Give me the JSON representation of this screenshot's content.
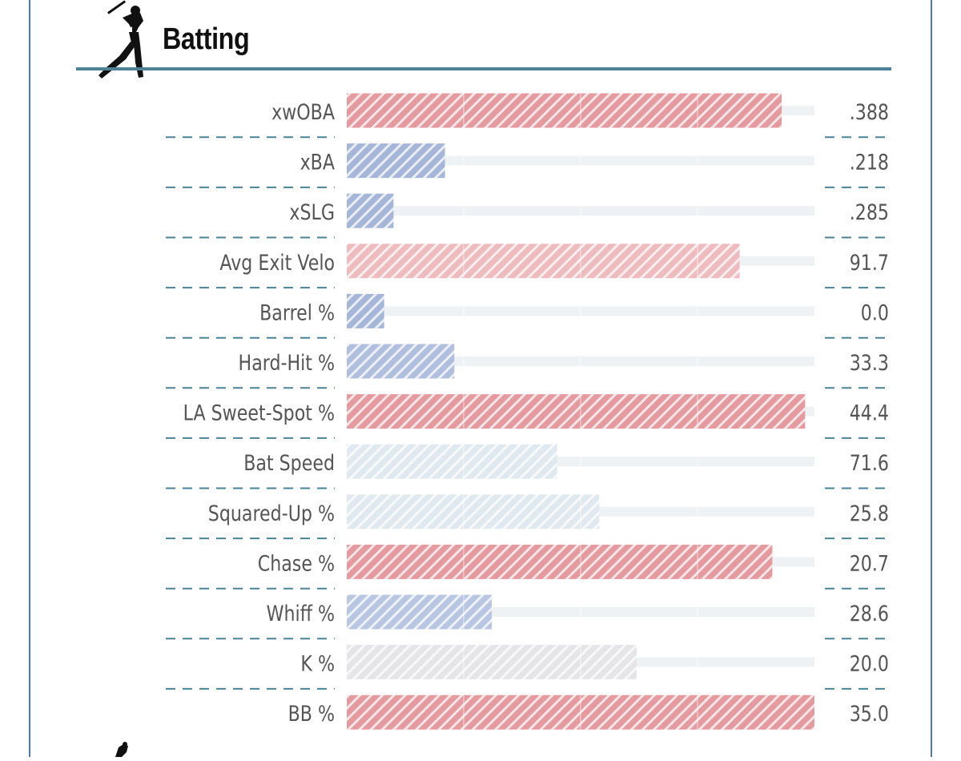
{
  "section": {
    "title": "Batting",
    "icon": "baseball-batter-icon"
  },
  "colors": {
    "frame": "#4f8296",
    "rule": "#4f8296",
    "divider": "#4a8395",
    "label": "#555555",
    "track": "#eef2f5",
    "hatch_stripe": "#ffffff"
  },
  "chart_data": {
    "type": "bar",
    "orientation": "horizontal",
    "xlim": [
      0,
      100
    ],
    "categories": [
      "xwOBA",
      "xBA",
      "xSLG",
      "Avg Exit Velo",
      "Barrel %",
      "Hard-Hit %",
      "LA Sweet-Spot %",
      "Bat Speed",
      "Squared-Up %",
      "Chase %",
      "Whiff %",
      "K %",
      "BB %"
    ],
    "series": [
      {
        "values": [
          93,
          21,
          10,
          84,
          8,
          23,
          98,
          45,
          54,
          91,
          31,
          62,
          100
        ]
      }
    ],
    "value_labels": [
      ".388",
      ".218",
      ".285",
      "91.7",
      "0.0",
      "33.3",
      "44.4",
      "71.6",
      "25.8",
      "20.7",
      "28.6",
      "20.0",
      "35.0"
    ],
    "bar_colors": [
      "#e59a9f",
      "#a6b6d8",
      "#a6b6d8",
      "#eebcbf",
      "#a6b6d8",
      "#b0bfde",
      "#e59a9f",
      "#e0e9ef",
      "#e0e9ef",
      "#e59a9f",
      "#b8c6e2",
      "#e5e5e7",
      "#e59a9f"
    ],
    "grid_x": [
      25,
      50,
      75
    ]
  }
}
